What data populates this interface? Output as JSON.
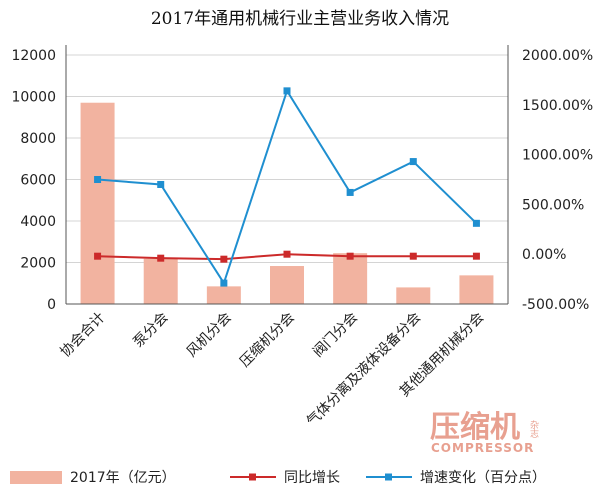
{
  "chart_data": {
    "type": "bar",
    "title": "2017年通用机械行业主营业务收入情况",
    "categories": [
      "协会合计",
      "泵分会",
      "风机分会",
      "压缩机分会",
      "阀门分会",
      "气体分离及液体设备分会",
      "其他通用机械分会"
    ],
    "y_left": {
      "ylim": [
        0,
        12000
      ],
      "ticks": [
        "0",
        "2000",
        "4000",
        "6000",
        "8000",
        "10000",
        "12000"
      ]
    },
    "y_right": {
      "ylim": [
        -500,
        2000
      ],
      "ticks": [
        "-500.00%",
        "0.00%",
        "500.00%",
        "1000.00%",
        "1500.00%",
        "2000.00%"
      ]
    },
    "series": [
      {
        "name": "2017年（亿元）",
        "type": "bar",
        "axis": "left",
        "color": "#f2b3a0",
        "values": [
          9700,
          2180,
          850,
          1830,
          2450,
          800,
          1380
        ]
      },
      {
        "name": "同比增长",
        "type": "line",
        "axis": "right",
        "color": "#cc2a2a",
        "values": [
          -20,
          -40,
          -50,
          0,
          -20,
          -20,
          -20
        ]
      },
      {
        "name": "增速变化（百分点）",
        "type": "line",
        "axis": "right",
        "color": "#1f8fd0",
        "values": [
          750,
          700,
          -290,
          1640,
          620,
          930,
          310
        ]
      }
    ],
    "grid": true,
    "legend": "bottom"
  },
  "watermark": {
    "cn": "压缩机",
    "en": "COMPRESSOR",
    "side": "杂志"
  }
}
